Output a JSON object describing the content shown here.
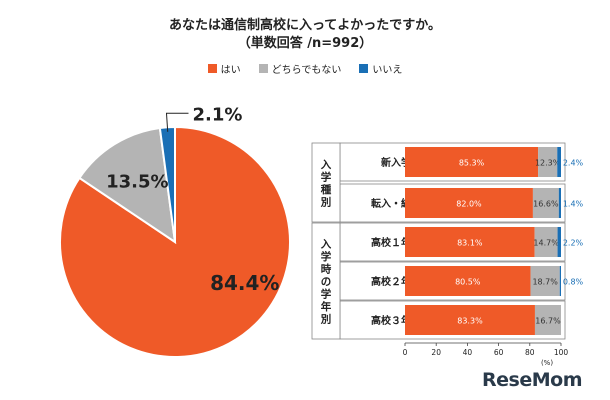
{
  "title_line1": "あなたは通信制高校に入ってよかったですか。",
  "title_line2": "（単数回答 /n=992）",
  "legend": [
    {
      "label": "はい",
      "color": "#ef5a28"
    },
    {
      "label": "どちらでもない",
      "color": "#b4b4b4"
    },
    {
      "label": "いいえ",
      "color": "#1a6fb5"
    }
  ],
  "logo_text": "ReseMom",
  "colors": {
    "yes": "#ef5a28",
    "neutral": "#b4b4b4",
    "no": "#1a6fb5"
  },
  "chart_data": [
    {
      "type": "pie",
      "labels": [
        "はい",
        "どちらでもない",
        "いいえ"
      ],
      "values": [
        84.4,
        13.5,
        2.1
      ],
      "value_labels": [
        "84.4%",
        "13.5%",
        "2.1%"
      ]
    },
    {
      "type": "bar",
      "orientation": "horizontal",
      "stacked": true,
      "groups": [
        {
          "name": "入学種別",
          "categories": [
            "新入学",
            "転入・編入"
          ]
        },
        {
          "name": "入学時の学年別",
          "categories": [
            "高校１年時",
            "高校２年時",
            "高校３年時"
          ]
        }
      ],
      "categories": [
        "新入学",
        "転入・編入",
        "高校１年時",
        "高校２年時",
        "高校３年時"
      ],
      "series": [
        {
          "name": "はい",
          "values": [
            85.3,
            82.0,
            83.1,
            80.5,
            83.3
          ],
          "labels": [
            "85.3%",
            "82.0%",
            "83.1%",
            "80.5%",
            "83.3%"
          ]
        },
        {
          "name": "どちらでもない",
          "values": [
            12.3,
            16.6,
            14.7,
            18.7,
            16.7
          ],
          "labels": [
            "12.3%",
            "16.6%",
            "14.7%",
            "18.7%",
            "16.7%"
          ]
        },
        {
          "name": "いいえ",
          "values": [
            2.4,
            1.4,
            2.2,
            0.8,
            0.0
          ],
          "labels": [
            "2.4%",
            "1.4%",
            "2.2%",
            "0.8%",
            ""
          ]
        }
      ],
      "xlim": [
        0,
        100
      ],
      "xticks": [
        "0",
        "20",
        "40",
        "60",
        "80",
        "100"
      ],
      "xunit": "(%)"
    }
  ]
}
